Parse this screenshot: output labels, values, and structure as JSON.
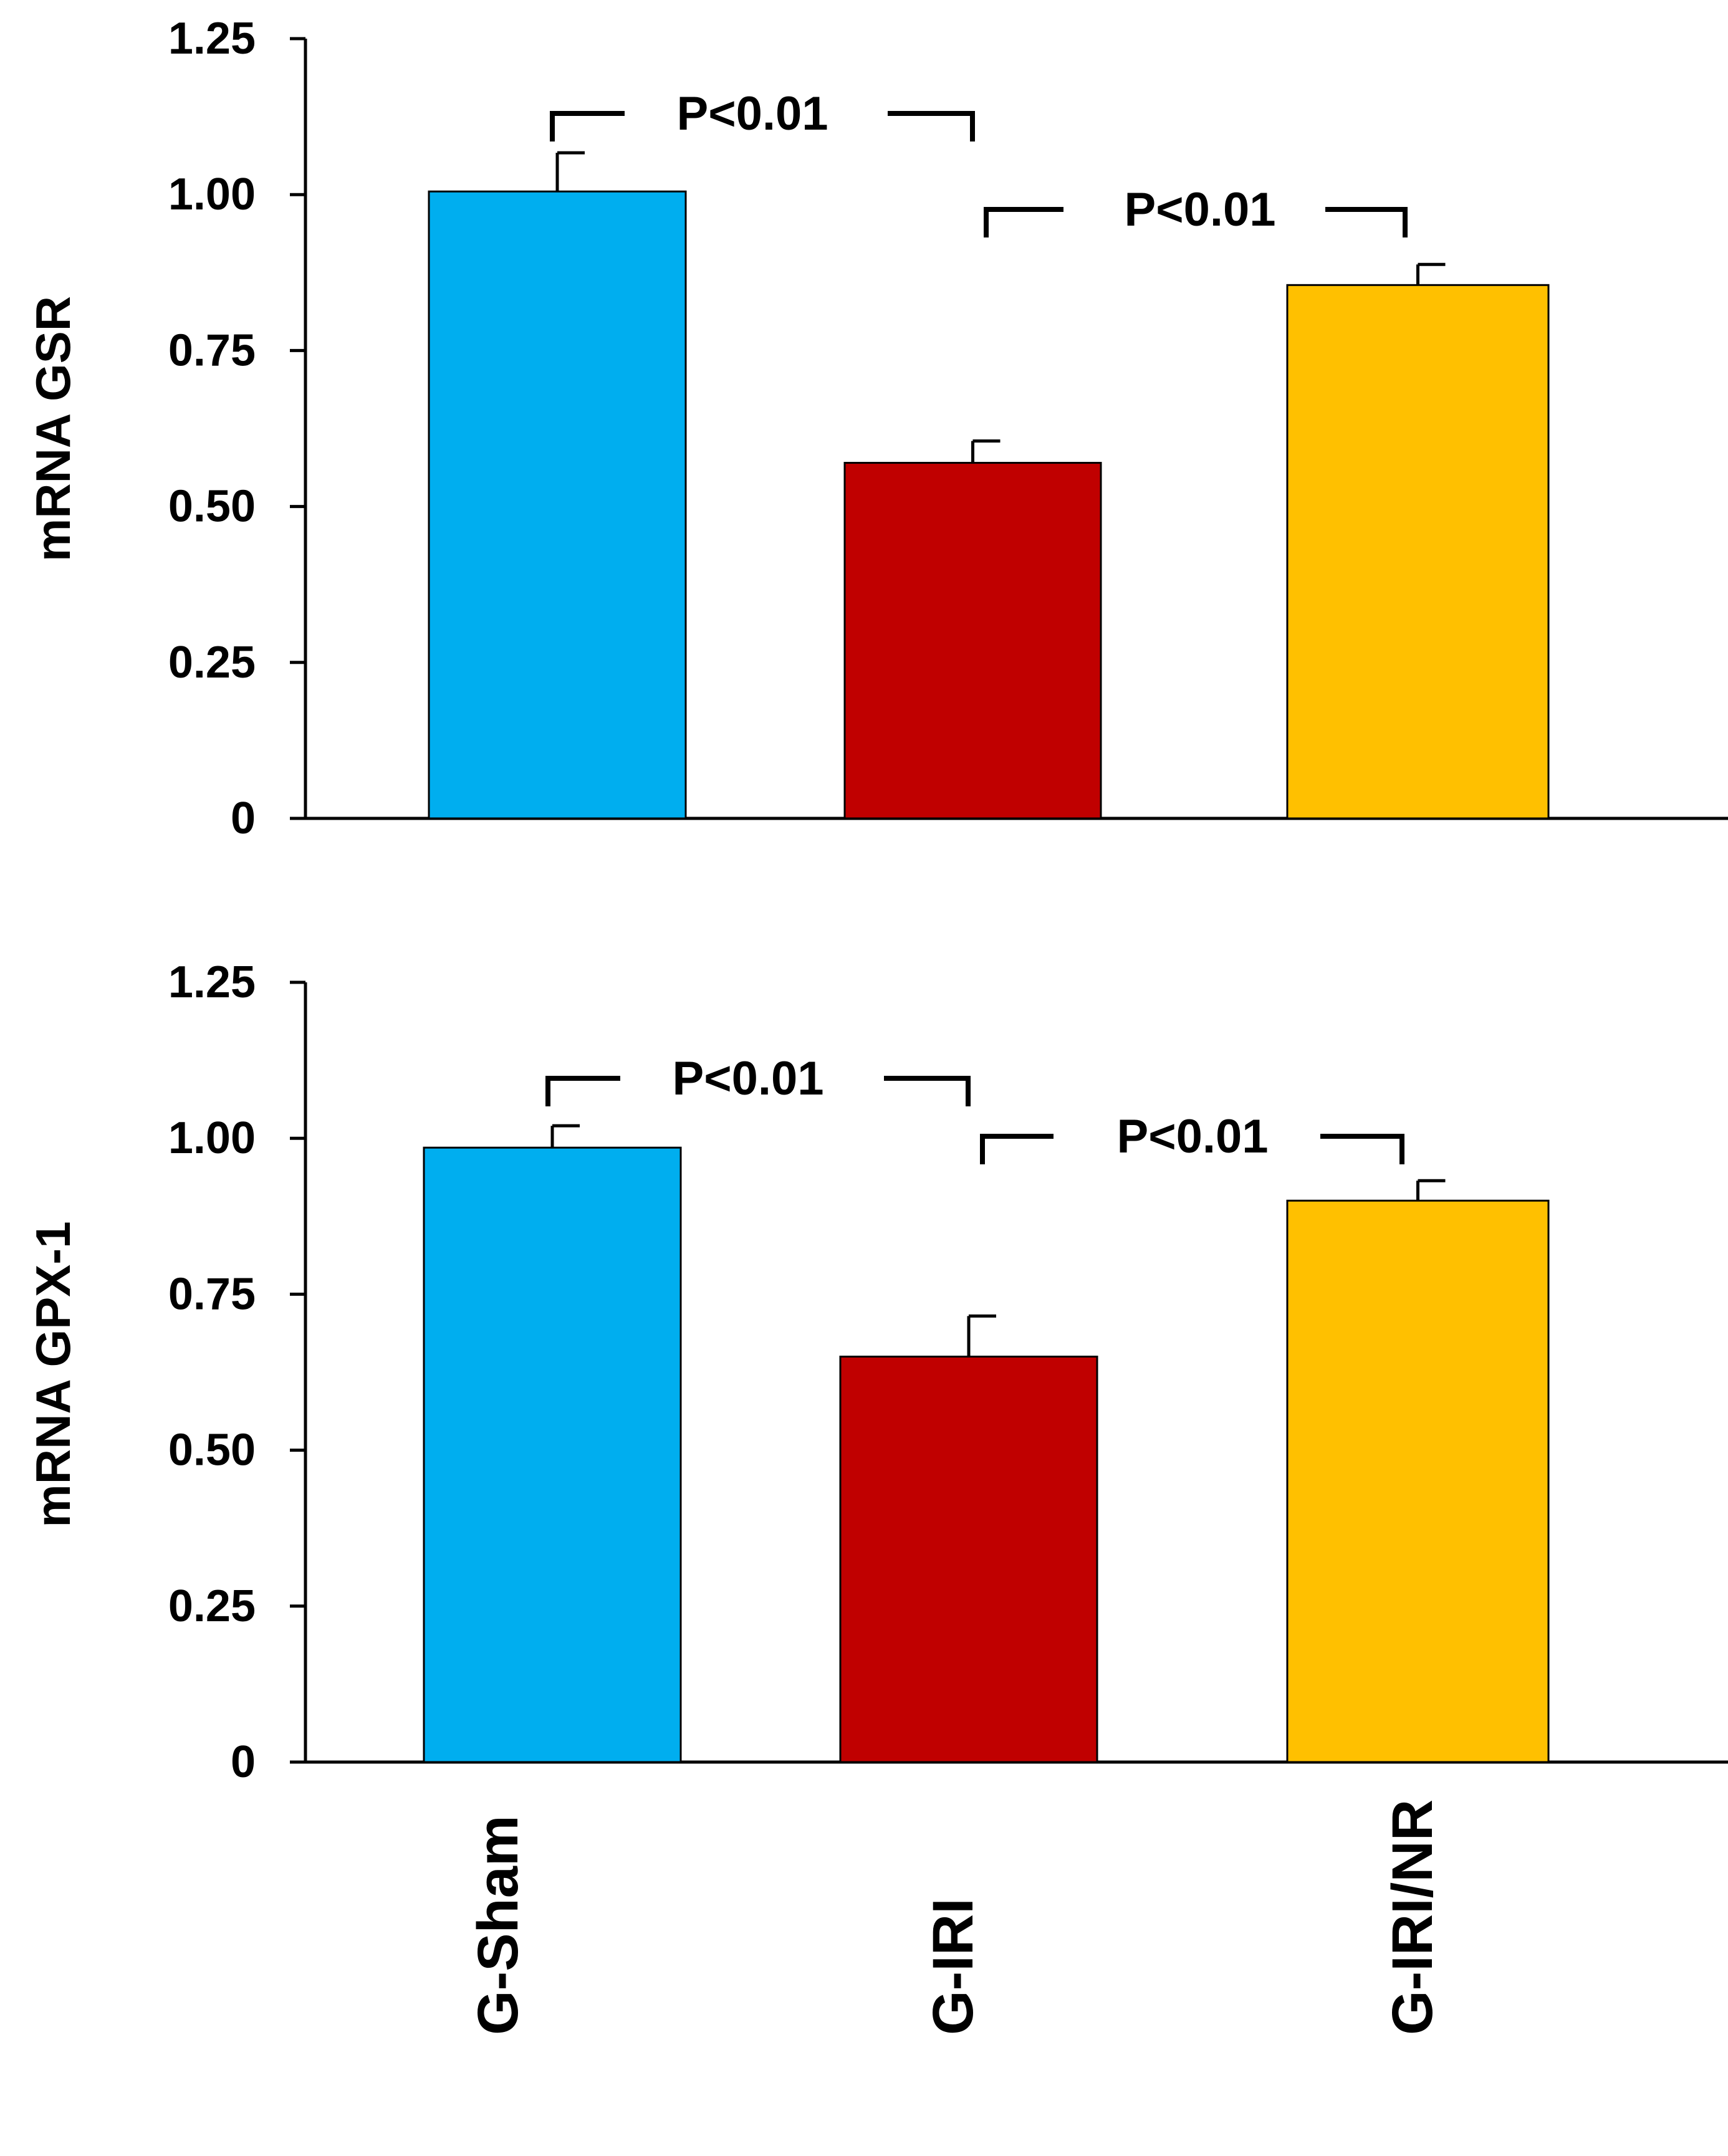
{
  "colors": {
    "G-Sham": "#00AEEF",
    "G-IRI": "#C00000",
    "G-IRI/NR": "#FFC000",
    "axis": "#000000"
  },
  "chart_data": [
    {
      "type": "bar",
      "title": "",
      "xlabel": "",
      "ylabel": "mRNA GSR",
      "ylim": [
        0,
        1.25
      ],
      "yticks": [
        0,
        0.25,
        0.5,
        0.75,
        1.0,
        1.25
      ],
      "ytick_labels": [
        "0",
        "0.25",
        "0.50",
        "0.75",
        "1.00",
        "1.25"
      ],
      "categories": [
        "G-Sham",
        "G-IRI",
        "G-IRI/NR"
      ],
      "values": [
        1.005,
        0.57,
        0.855
      ],
      "errors": [
        0.062,
        0.035,
        0.033
      ],
      "grid": false,
      "annotations": [
        {
          "from": "G-Sham",
          "to": "G-IRI",
          "text": "P<0.01"
        },
        {
          "from": "G-IRI",
          "to": "G-IRI/NR",
          "text": "P<0.01"
        }
      ]
    },
    {
      "type": "bar",
      "title": "",
      "xlabel": "",
      "ylabel": "mRNA GPX-1",
      "ylim": [
        0,
        1.25
      ],
      "yticks": [
        0,
        0.25,
        0.5,
        0.75,
        1.0,
        1.25
      ],
      "ytick_labels": [
        "0",
        "0.25",
        "0.50",
        "0.75",
        "1.00",
        "1.25"
      ],
      "categories": [
        "G-Sham",
        "G-IRI",
        "G-IRI/NR"
      ],
      "values": [
        0.985,
        0.65,
        0.9
      ],
      "errors": [
        0.035,
        0.065,
        0.032
      ],
      "grid": false,
      "annotations": [
        {
          "from": "G-Sham",
          "to": "G-IRI",
          "text": "P<0.01"
        },
        {
          "from": "G-IRI",
          "to": "G-IRI/NR",
          "text": "P<0.01"
        }
      ]
    }
  ],
  "x_category_labels": [
    "G-Sham",
    "G-IRI",
    "G-IRI/NR"
  ]
}
